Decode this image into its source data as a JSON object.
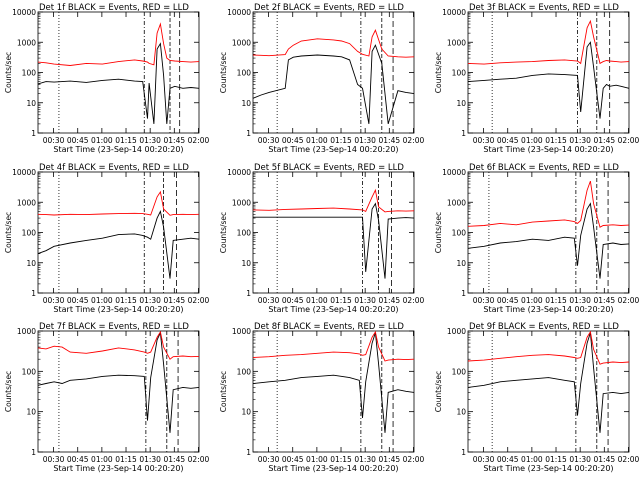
{
  "figure": {
    "xlabel": "Start Time (23-Sep-14 00:20:20)",
    "ylabel": "Counts/sec",
    "line_colors": {
      "events": "#000000",
      "lld": "#ff0000"
    }
  },
  "chart_data": [
    {
      "type": "line",
      "title": "Det 1f BLACK = Events, RED = LLD",
      "xlabel": "Start Time (23-Sep-14 00:20:20)",
      "ylabel": "Counts/sec",
      "y_scale": "log",
      "ylim": [
        1,
        10000
      ],
      "y_ticks": [
        "1",
        "10",
        "100",
        "1000",
        "10000"
      ],
      "x_ticks": [
        "00:30",
        "00:45",
        "01:00",
        "01:15",
        "01:30",
        "01:45",
        "02:00"
      ],
      "x_minutes": [
        0,
        5,
        10,
        20,
        30,
        40,
        50,
        60,
        65,
        68,
        69,
        72,
        74,
        76,
        78,
        80,
        82,
        85,
        90,
        95,
        100
      ],
      "series": [
        {
          "name": "Events",
          "color": "#000000",
          "values": [
            42,
            50,
            48,
            52,
            47,
            55,
            60,
            52,
            50,
            3,
            45,
            2,
            600,
            900,
            80,
            2,
            30,
            35,
            30,
            32,
            30
          ]
        },
        {
          "name": "LLD",
          "color": "#ff0000",
          "values": [
            220,
            210,
            190,
            170,
            200,
            190,
            230,
            260,
            240,
            220,
            200,
            180,
            2000,
            4000,
            900,
            300,
            250,
            240,
            230,
            220,
            230
          ]
        }
      ],
      "vlines_minutes": [
        13,
        66,
        82,
        88
      ]
    },
    {
      "type": "line",
      "title": "Det 2f BLACK = Events, RED = LLD",
      "xlabel": "Start Time (23-Sep-14 00:20:20)",
      "ylabel": "Counts/sec",
      "y_scale": "log",
      "ylim": [
        1,
        10000
      ],
      "y_ticks": [
        "1",
        "10",
        "100",
        "1000",
        "10000"
      ],
      "x_ticks": [
        "00:30",
        "00:45",
        "01:00",
        "01:15",
        "01:30",
        "01:45",
        "02:00"
      ],
      "x_minutes": [
        0,
        5,
        10,
        20,
        22,
        25,
        30,
        40,
        50,
        55,
        60,
        65,
        68,
        72,
        74,
        76,
        80,
        84,
        90,
        95,
        100
      ],
      "series": [
        {
          "name": "Events",
          "color": "#000000",
          "values": [
            14,
            18,
            22,
            30,
            260,
            320,
            350,
            380,
            350,
            330,
            260,
            40,
            30,
            2,
            500,
            800,
            200,
            2,
            25,
            22,
            20
          ]
        },
        {
          "name": "LLD",
          "color": "#ff0000",
          "values": [
            380,
            370,
            360,
            390,
            600,
            800,
            1100,
            1300,
            1200,
            1100,
            900,
            500,
            400,
            350,
            1500,
            2500,
            600,
            350,
            330,
            320,
            330
          ]
        }
      ],
      "vlines_minutes": [
        15,
        67,
        80,
        87
      ]
    },
    {
      "type": "line",
      "title": "Det 3f BLACK = Events, RED = LLD",
      "xlabel": "Start Time (23-Sep-14 00:20:20)",
      "ylabel": "Counts/sec",
      "y_scale": "log",
      "ylim": [
        1,
        10000
      ],
      "y_ticks": [
        "1",
        "10",
        "100",
        "1000",
        "10000"
      ],
      "x_ticks": [
        "00:30",
        "00:45",
        "01:00",
        "01:15",
        "01:30",
        "01:45",
        "02:00"
      ],
      "x_minutes": [
        0,
        10,
        20,
        30,
        40,
        50,
        60,
        68,
        70,
        74,
        76,
        78,
        82,
        84,
        86,
        88,
        92,
        95,
        100
      ],
      "series": [
        {
          "name": "Events",
          "color": "#000000",
          "values": [
            50,
            55,
            60,
            65,
            80,
            90,
            85,
            80,
            5,
            700,
            1000,
            150,
            3,
            30,
            40,
            35,
            38,
            35,
            30
          ]
        },
        {
          "name": "LLD",
          "color": "#ff0000",
          "values": [
            200,
            190,
            210,
            220,
            230,
            250,
            260,
            240,
            200,
            3000,
            5000,
            1500,
            200,
            230,
            250,
            240,
            230,
            220,
            230
          ]
        }
      ],
      "vlines_minutes": [
        15,
        68,
        80,
        88
      ]
    },
    {
      "type": "line",
      "title": "Det 4f BLACK = Events, RED = LLD",
      "xlabel": "Start Time (23-Sep-14 00:20:20)",
      "ylabel": "Counts/sec",
      "y_scale": "log",
      "ylim": [
        1,
        10000
      ],
      "y_ticks": [
        "1",
        "10",
        "100",
        "1000",
        "10000"
      ],
      "x_ticks": [
        "00:30",
        "00:45",
        "01:00",
        "01:15",
        "01:30",
        "01:45",
        "02:00"
      ],
      "x_minutes": [
        0,
        5,
        10,
        20,
        30,
        40,
        50,
        60,
        65,
        68,
        70,
        74,
        76,
        78,
        82,
        84,
        90,
        95,
        100
      ],
      "series": [
        {
          "name": "Events",
          "color": "#000000",
          "values": [
            20,
            25,
            35,
            45,
            55,
            65,
            85,
            90,
            80,
            70,
            60,
            300,
            500,
            150,
            3,
            55,
            60,
            65,
            60
          ]
        },
        {
          "name": "LLD",
          "color": "#ff0000",
          "values": [
            400,
            390,
            380,
            400,
            390,
            410,
            420,
            430,
            420,
            400,
            380,
            1500,
            2200,
            600,
            370,
            390,
            400,
            390,
            400
          ]
        }
      ],
      "vlines_minutes": [
        13,
        66,
        78,
        86
      ]
    },
    {
      "type": "line",
      "title": "Det 5f BLACK = Events, RED = LLD",
      "xlabel": "Start Time (23-Sep-14 00:20:20)",
      "ylabel": "Counts/sec",
      "y_scale": "log",
      "ylim": [
        1,
        10000
      ],
      "y_ticks": [
        "1",
        "10",
        "100",
        "1000",
        "10000"
      ],
      "x_ticks": [
        "00:30",
        "00:45",
        "01:00",
        "01:15",
        "01:30",
        "01:45",
        "02:00"
      ],
      "x_minutes": [
        0,
        10,
        20,
        30,
        40,
        50,
        60,
        68,
        70,
        74,
        76,
        78,
        82,
        84,
        90,
        95,
        100
      ],
      "series": [
        {
          "name": "Events",
          "color": "#000000",
          "values": [
            320,
            320,
            320,
            320,
            320,
            320,
            320,
            320,
            5,
            600,
            900,
            250,
            3,
            280,
            300,
            310,
            300
          ]
        },
        {
          "name": "LLD",
          "color": "#ff0000",
          "values": [
            560,
            540,
            580,
            600,
            620,
            640,
            600,
            560,
            500,
            1500,
            2500,
            700,
            480,
            500,
            520,
            510,
            520
          ]
        }
      ],
      "vlines_minutes": [
        15,
        68,
        78,
        86
      ]
    },
    {
      "type": "line",
      "title": "Det 6f BLACK = Events, RED = LLD",
      "xlabel": "Start Time (23-Sep-14 00:20:20)",
      "ylabel": "Counts/sec",
      "y_scale": "log",
      "ylim": [
        1,
        10000
      ],
      "y_ticks": [
        "1",
        "10",
        "100",
        "1000",
        "10000"
      ],
      "x_ticks": [
        "00:30",
        "00:45",
        "01:00",
        "01:15",
        "01:30",
        "01:45",
        "02:00"
      ],
      "x_minutes": [
        0,
        10,
        20,
        30,
        40,
        50,
        60,
        66,
        68,
        70,
        74,
        76,
        78,
        82,
        84,
        90,
        95,
        100
      ],
      "series": [
        {
          "name": "Events",
          "color": "#000000",
          "values": [
            30,
            35,
            45,
            50,
            60,
            55,
            70,
            65,
            8,
            80,
            600,
            900,
            150,
            3,
            40,
            45,
            40,
            42
          ]
        },
        {
          "name": "LLD",
          "color": "#ff0000",
          "values": [
            160,
            170,
            200,
            180,
            220,
            240,
            260,
            230,
            200,
            250,
            2500,
            5000,
            900,
            150,
            170,
            180,
            170,
            175
          ]
        }
      ],
      "vlines_minutes": [
        13,
        67,
        80,
        87
      ]
    },
    {
      "type": "line",
      "title": "Det 7f BLACK = Events, RED = LLD",
      "xlabel": "Start Time (23-Sep-14 00:20:20)",
      "ylabel": "Counts/sec",
      "y_scale": "log",
      "ylim": [
        1,
        1000
      ],
      "y_ticks": [
        "1",
        "10",
        "100",
        "1000"
      ],
      "x_ticks": [
        "00:30",
        "00:45",
        "01:00",
        "01:15",
        "01:30",
        "01:45",
        "02:00"
      ],
      "x_minutes": [
        0,
        5,
        10,
        15,
        20,
        30,
        40,
        50,
        60,
        66,
        68,
        70,
        74,
        76,
        78,
        82,
        84,
        90,
        95,
        100
      ],
      "series": [
        {
          "name": "Events",
          "color": "#000000",
          "values": [
            45,
            50,
            55,
            50,
            60,
            65,
            75,
            80,
            78,
            75,
            6,
            70,
            600,
            900,
            150,
            3,
            35,
            40,
            38,
            40
          ]
        },
        {
          "name": "LLD",
          "color": "#ff0000",
          "values": [
            380,
            360,
            420,
            400,
            300,
            280,
            320,
            380,
            340,
            300,
            280,
            300,
            700,
            950,
            400,
            200,
            230,
            240,
            230,
            235
          ]
        }
      ],
      "vlines_minutes": [
        13,
        67,
        80,
        87
      ]
    },
    {
      "type": "line",
      "title": "Det 8f BLACK = Events, RED = LLD",
      "xlabel": "Start Time (23-Sep-14 00:20:20)",
      "ylabel": "Counts/sec",
      "y_scale": "log",
      "ylim": [
        1,
        1000
      ],
      "y_ticks": [
        "1",
        "10",
        "100",
        "1000"
      ],
      "x_ticks": [
        "00:30",
        "00:45",
        "01:00",
        "01:15",
        "01:30",
        "01:45",
        "02:00"
      ],
      "x_minutes": [
        0,
        10,
        20,
        30,
        40,
        50,
        60,
        66,
        68,
        70,
        74,
        76,
        78,
        82,
        84,
        90,
        95,
        100
      ],
      "series": [
        {
          "name": "Events",
          "color": "#000000",
          "values": [
            50,
            55,
            60,
            70,
            75,
            80,
            70,
            60,
            7,
            55,
            500,
            900,
            150,
            3,
            30,
            35,
            32,
            30
          ]
        },
        {
          "name": "LLD",
          "color": "#ff0000",
          "values": [
            220,
            230,
            250,
            260,
            280,
            300,
            290,
            270,
            250,
            260,
            700,
            950,
            400,
            180,
            190,
            200,
            195,
            200
          ]
        }
      ],
      "vlines_minutes": [
        15,
        67,
        80,
        87
      ]
    },
    {
      "type": "line",
      "title": "Det 9f BLACK = Events, RED = LLD",
      "xlabel": "Start Time (23-Sep-14 00:20:20)",
      "ylabel": "Counts/sec",
      "y_scale": "log",
      "ylim": [
        1,
        1000
      ],
      "y_ticks": [
        "1",
        "10",
        "100",
        "1000"
      ],
      "x_ticks": [
        "00:30",
        "00:45",
        "01:00",
        "01:15",
        "01:30",
        "01:45",
        "02:00"
      ],
      "x_minutes": [
        0,
        10,
        20,
        30,
        40,
        50,
        60,
        66,
        68,
        70,
        74,
        76,
        78,
        82,
        84,
        90,
        95,
        100
      ],
      "series": [
        {
          "name": "Events",
          "color": "#000000",
          "values": [
            40,
            45,
            55,
            60,
            65,
            70,
            60,
            55,
            8,
            50,
            500,
            900,
            120,
            3,
            28,
            30,
            28,
            30
          ]
        },
        {
          "name": "LLD",
          "color": "#ff0000",
          "values": [
            180,
            190,
            210,
            230,
            250,
            260,
            240,
            220,
            210,
            220,
            700,
            950,
            350,
            150,
            160,
            170,
            165,
            170
          ]
        }
      ],
      "vlines_minutes": [
        15,
        67,
        80,
        87
      ]
    }
  ]
}
